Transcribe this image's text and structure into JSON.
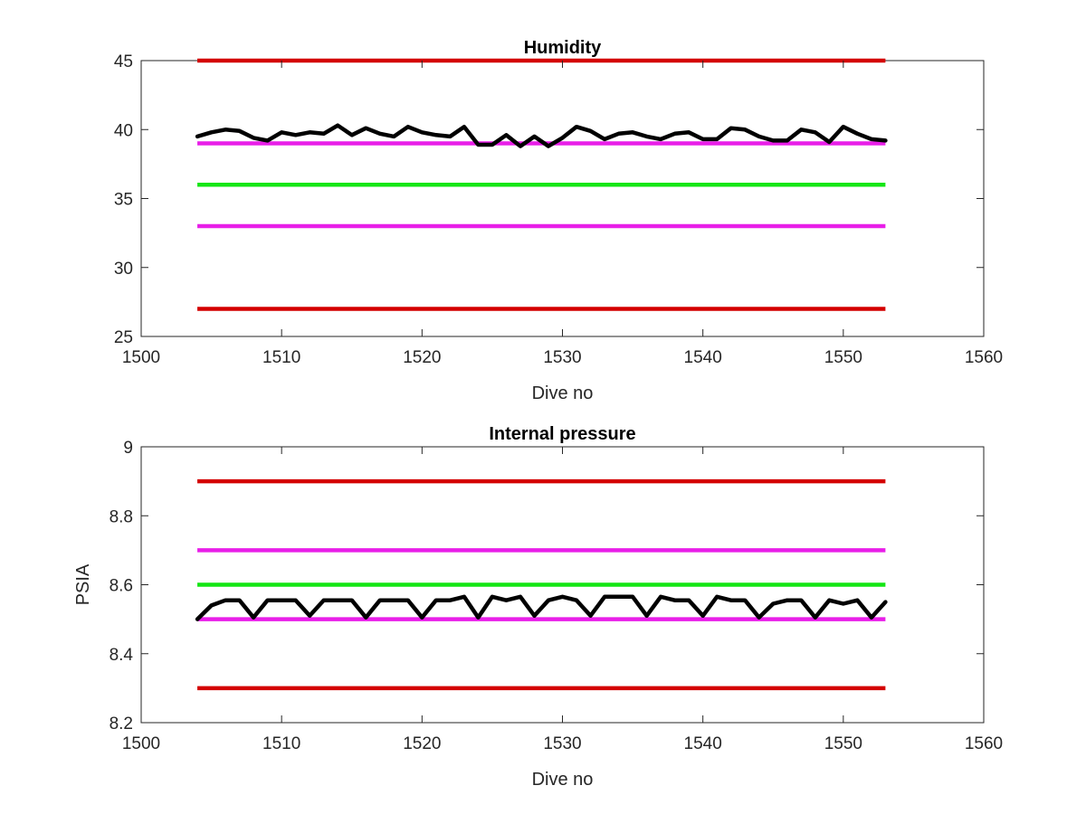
{
  "chart_data": [
    {
      "type": "line",
      "title": "Humidity",
      "xlabel": "Dive no",
      "ylabel": "",
      "xlim": [
        1500,
        1560
      ],
      "ylim": [
        25,
        45
      ],
      "xticks": [
        1500,
        1510,
        1520,
        1530,
        1540,
        1550,
        1560
      ],
      "yticks": [
        25,
        30,
        35,
        40,
        45
      ],
      "xtick_labels": [
        "1500",
        "1510",
        "1520",
        "1530",
        "1540",
        "1550",
        "1560"
      ],
      "ytick_labels": [
        "25",
        "30",
        "35",
        "40",
        "45"
      ],
      "grid": false,
      "legend": null,
      "reference_lines": [
        {
          "y": 45,
          "x": [
            1504,
            1553
          ],
          "color": "#d40000"
        },
        {
          "y": 39,
          "x": [
            1504,
            1553
          ],
          "color": "#e81ee8"
        },
        {
          "y": 36,
          "x": [
            1504,
            1553
          ],
          "color": "#14e614"
        },
        {
          "y": 33,
          "x": [
            1504,
            1553
          ],
          "color": "#e81ee8"
        },
        {
          "y": 27,
          "x": [
            1504,
            1553
          ],
          "color": "#d40000"
        }
      ],
      "series": [
        {
          "color": "#000000",
          "x": [
            1504,
            1505,
            1506,
            1507,
            1508,
            1509,
            1510,
            1511,
            1512,
            1513,
            1514,
            1515,
            1516,
            1517,
            1518,
            1519,
            1520,
            1521,
            1522,
            1523,
            1524,
            1525,
            1526,
            1527,
            1528,
            1529,
            1530,
            1531,
            1532,
            1533,
            1534,
            1535,
            1536,
            1537,
            1538,
            1539,
            1540,
            1541,
            1542,
            1543,
            1544,
            1545,
            1546,
            1547,
            1548,
            1549,
            1550,
            1551,
            1552,
            1553
          ],
          "y": [
            39.5,
            39.8,
            40.0,
            39.9,
            39.4,
            39.2,
            39.8,
            39.6,
            39.8,
            39.7,
            40.3,
            39.6,
            40.1,
            39.7,
            39.5,
            40.2,
            39.8,
            39.6,
            39.5,
            40.2,
            38.9,
            38.9,
            39.6,
            38.8,
            39.5,
            38.8,
            39.4,
            40.2,
            39.9,
            39.3,
            39.7,
            39.8,
            39.5,
            39.3,
            39.7,
            39.8,
            39.3,
            39.3,
            40.1,
            40.0,
            39.5,
            39.2,
            39.2,
            40.0,
            39.8,
            39.1,
            40.2,
            39.7,
            39.3,
            39.2
          ]
        }
      ]
    },
    {
      "type": "line",
      "title": "Internal pressure",
      "xlabel": "Dive no",
      "ylabel": "PSIA",
      "xlim": [
        1500,
        1560
      ],
      "ylim": [
        8.2,
        9.0
      ],
      "xticks": [
        1500,
        1510,
        1520,
        1530,
        1540,
        1550,
        1560
      ],
      "yticks": [
        8.2,
        8.4,
        8.6,
        8.8,
        9.0
      ],
      "xtick_labels": [
        "1500",
        "1510",
        "1520",
        "1530",
        "1540",
        "1550",
        "1560"
      ],
      "ytick_labels": [
        "8.2",
        "8.4",
        "8.6",
        "8.8",
        "9"
      ],
      "grid": false,
      "legend": null,
      "reference_lines": [
        {
          "y": 8.9,
          "x": [
            1504,
            1553
          ],
          "color": "#d40000"
        },
        {
          "y": 8.7,
          "x": [
            1504,
            1553
          ],
          "color": "#e81ee8"
        },
        {
          "y": 8.6,
          "x": [
            1504,
            1553
          ],
          "color": "#14e614"
        },
        {
          "y": 8.5,
          "x": [
            1504,
            1553
          ],
          "color": "#e81ee8"
        },
        {
          "y": 8.3,
          "x": [
            1504,
            1553
          ],
          "color": "#d40000"
        }
      ],
      "series": [
        {
          "color": "#000000",
          "x": [
            1504,
            1505,
            1506,
            1507,
            1508,
            1509,
            1510,
            1511,
            1512,
            1513,
            1514,
            1515,
            1516,
            1517,
            1518,
            1519,
            1520,
            1521,
            1522,
            1523,
            1524,
            1525,
            1526,
            1527,
            1528,
            1529,
            1530,
            1531,
            1532,
            1533,
            1534,
            1535,
            1536,
            1537,
            1538,
            1539,
            1540,
            1541,
            1542,
            1543,
            1544,
            1545,
            1546,
            1547,
            1548,
            1549,
            1550,
            1551,
            1552,
            1553
          ],
          "y": [
            8.5,
            8.54,
            8.555,
            8.555,
            8.505,
            8.555,
            8.555,
            8.555,
            8.51,
            8.555,
            8.555,
            8.555,
            8.505,
            8.555,
            8.555,
            8.555,
            8.505,
            8.555,
            8.555,
            8.565,
            8.505,
            8.565,
            8.555,
            8.565,
            8.51,
            8.555,
            8.565,
            8.555,
            8.51,
            8.565,
            8.565,
            8.565,
            8.51,
            8.565,
            8.555,
            8.555,
            8.51,
            8.565,
            8.555,
            8.555,
            8.505,
            8.545,
            8.555,
            8.555,
            8.505,
            8.555,
            8.545,
            8.555,
            8.505,
            8.55
          ]
        }
      ]
    }
  ]
}
